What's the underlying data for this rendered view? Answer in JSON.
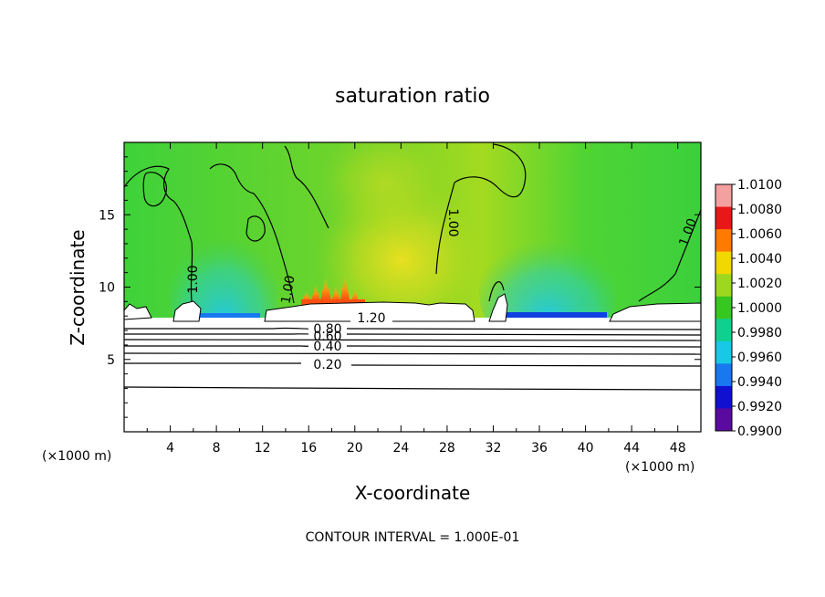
{
  "chart_data": {
    "type": "heatmap",
    "title": "saturation ratio",
    "xlabel": "X-coordinate",
    "ylabel": "Z-coordinate",
    "x_unit": "(×1000 m)",
    "z_unit": "(×1000 m)",
    "xlim": [
      0,
      50
    ],
    "ylim": [
      0,
      20
    ],
    "x_ticks": [
      "4",
      "8",
      "12",
      "16",
      "20",
      "24",
      "28",
      "32",
      "36",
      "40",
      "44",
      "48"
    ],
    "y_ticks": [
      "5",
      "10",
      "15"
    ],
    "contour_interval_text": "CONTOUR INTERVAL = 1.000E-01",
    "colorbar": {
      "labels": [
        "1.0100",
        "1.0080",
        "1.0060",
        "1.0040",
        "1.0020",
        "1.0000",
        "0.9980",
        "0.9960",
        "0.9940",
        "0.9920",
        "0.9900"
      ],
      "colors": [
        "#f5a0a0",
        "#e81818",
        "#ff7a00",
        "#f0d800",
        "#9ed81e",
        "#36c81e",
        "#10d090",
        "#18c8e6",
        "#1878f0",
        "#1010d0",
        "#5a0aa0"
      ]
    },
    "contour_labels": [
      "1.00",
      "1.00",
      "1.00",
      "1.00",
      "1.20",
      "0.80",
      "0.60",
      "0.40",
      "0.20"
    ],
    "field_description_values": {
      "background": 1.001,
      "moist_maximum": {
        "x": 24,
        "z": 11.5,
        "value": 1.003
      },
      "supersaturated_spikes": {
        "x_range": [
          15,
          20
        ],
        "z_range": [
          9,
          10.3
        ],
        "value": 1.007
      },
      "subsaturated_pockets": [
        {
          "x_range": [
            6,
            12
          ],
          "z_range": [
            7.5,
            11
          ],
          "value": 0.996
        },
        {
          "x_range": [
            33,
            42
          ],
          "z_range": [
            7.5,
            11
          ],
          "value": 0.995
        }
      ],
      "undefined_below_z": 7.5
    }
  }
}
